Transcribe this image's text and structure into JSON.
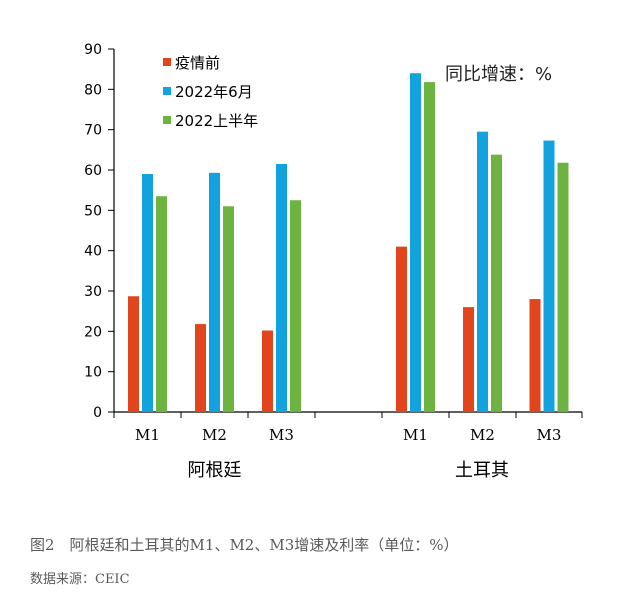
{
  "figure": {
    "caption": "图2　阿根廷和土耳其的M1、M2、M3增速及利率（单位：%）",
    "source": "数据来源：CEIC"
  },
  "chart_data": {
    "type": "bar",
    "annotation": "同比增速：%",
    "groups": [
      "阿根廷",
      "土耳其"
    ],
    "categories": [
      "M1",
      "M2",
      "M3",
      "M1",
      "M2",
      "M3"
    ],
    "category_group_index": [
      0,
      0,
      0,
      1,
      1,
      1
    ],
    "series": [
      {
        "name": "疫情前",
        "color": "#e2441c",
        "values": [
          28.7,
          21.8,
          20.2,
          41.0,
          26.0,
          28.0
        ]
      },
      {
        "name": "2022年6月",
        "color": "#12a3df",
        "values": [
          59.0,
          59.3,
          61.5,
          84.0,
          69.5,
          67.3
        ]
      },
      {
        "name": "2022上半年",
        "color": "#6cb33f",
        "values": [
          53.5,
          51.0,
          52.5,
          81.8,
          63.8,
          61.8
        ]
      }
    ],
    "ylim": [
      0,
      90
    ],
    "yticks": [
      "0",
      "10",
      "20",
      "30",
      "40",
      "50",
      "60",
      "70",
      "80",
      "90"
    ],
    "grid": false,
    "legend_position": "top-left"
  }
}
